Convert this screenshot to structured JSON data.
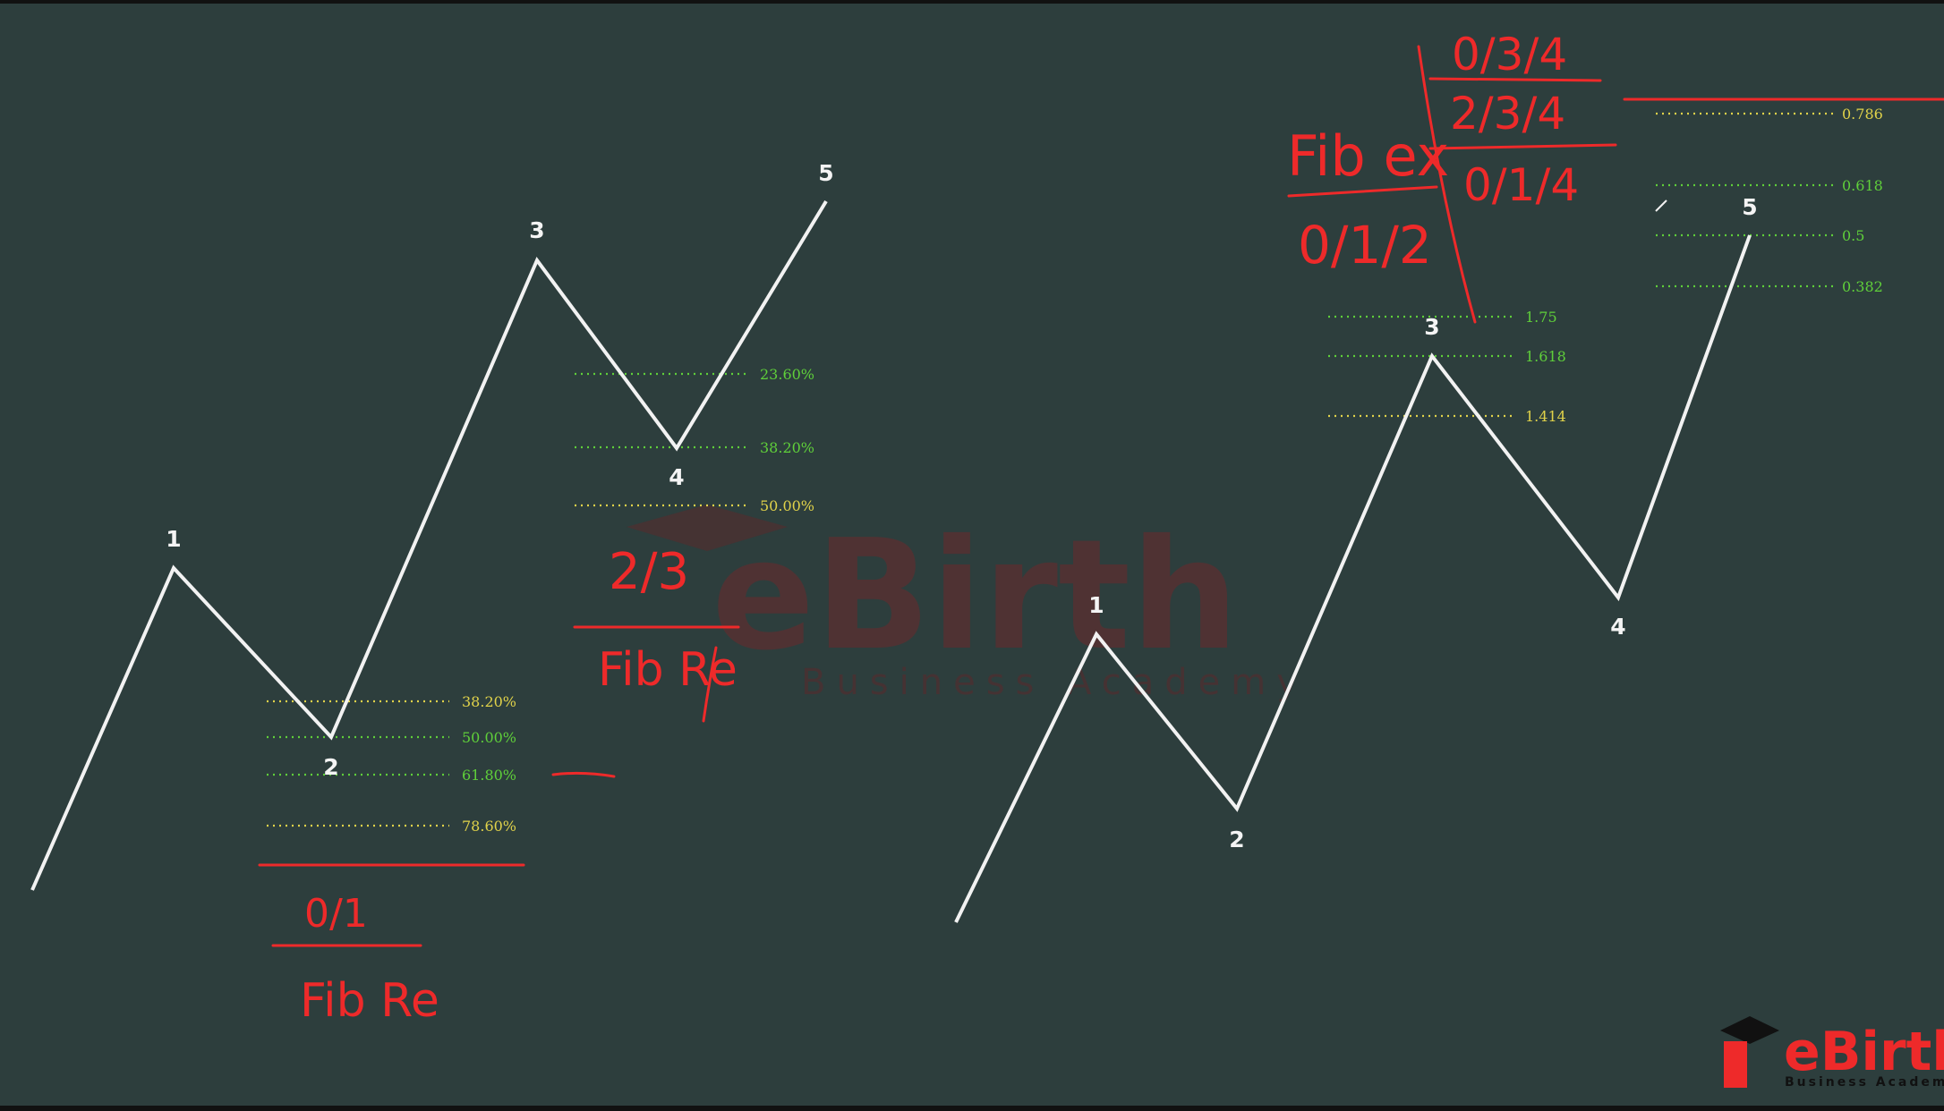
{
  "watermark": {
    "brand": "eBirth",
    "tagline": "Business Academy"
  },
  "logo": {
    "brand": "eBirth",
    "tagline": "Business Academy"
  },
  "left_diagram": {
    "wave_labels": [
      "1",
      "2",
      "3",
      "4",
      "5"
    ],
    "wave2_retracement_levels": [
      "38.20%",
      "50.00%",
      "61.80%",
      "78.60%"
    ],
    "wave4_retracement_levels": [
      "23.60%",
      "38.20%",
      "50.00%"
    ]
  },
  "right_diagram": {
    "wave_labels": [
      "1",
      "2",
      "3",
      "4",
      "5"
    ],
    "wave3_extension_levels": [
      "1.75",
      "1.618",
      "1.414"
    ],
    "wave5_levels": [
      "0.786",
      "0.618",
      "0.5",
      "0.382"
    ]
  },
  "annotations": {
    "left_bottom_ratio": "0/1",
    "left_bottom_tool": "Fib Re",
    "left_mid_ratio": "2/3",
    "left_mid_tool": "Fib Re",
    "right_top_tool": "Fib ex",
    "right_top_ratio_1": "0/1/2",
    "right_top_ratio_2": "0/3/4",
    "right_top_ratio_3": "2/3/4",
    "right_top_ratio_4": "0/1/4"
  },
  "colors": {
    "background": "#2d3e3d",
    "wave_line": "#f2f2f2",
    "level_green": "#5fcf3a",
    "level_yellow": "#e0d24a",
    "annotation_red": "#ee2a2a"
  }
}
